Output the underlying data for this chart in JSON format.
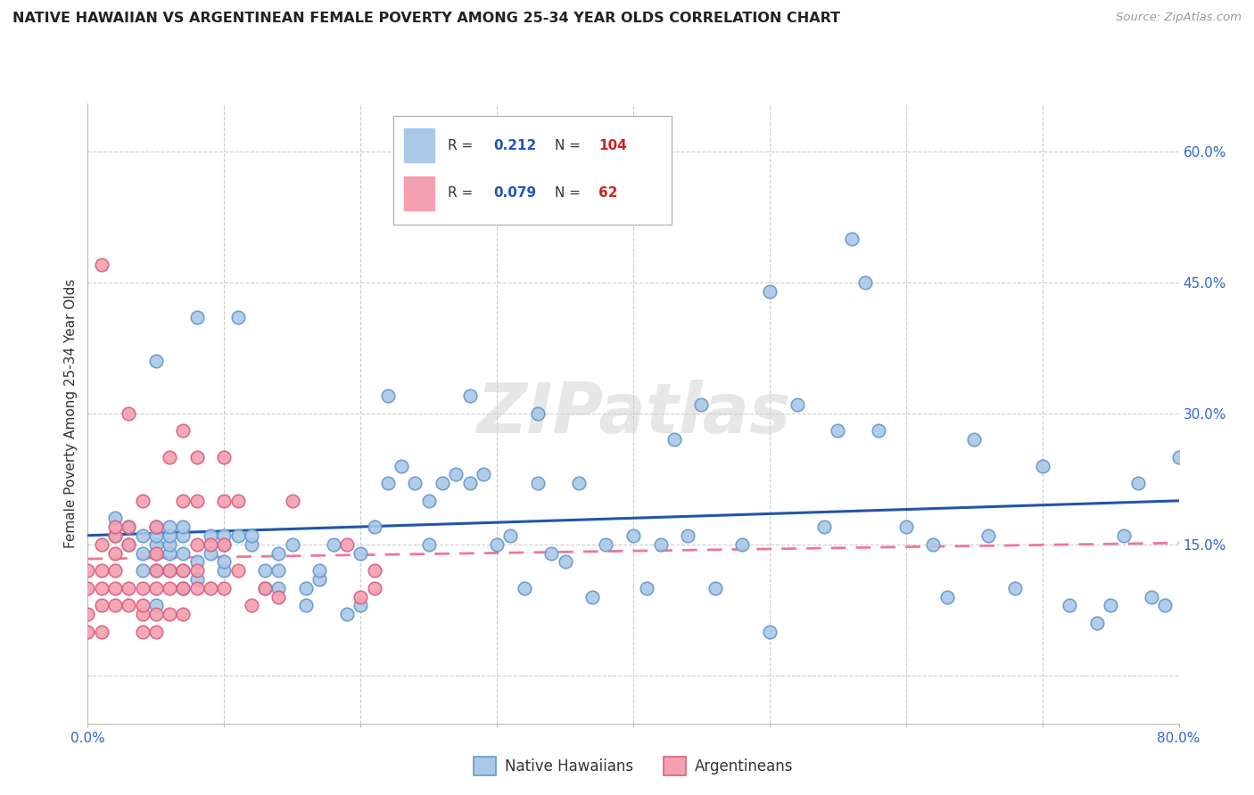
{
  "title": "NATIVE HAWAIIAN VS ARGENTINEAN FEMALE POVERTY AMONG 25-34 YEAR OLDS CORRELATION CHART",
  "source": "Source: ZipAtlas.com",
  "ylabel": "Female Poverty Among 25-34 Year Olds",
  "nh_color": "#aac8e8",
  "nh_edge": "#6699cc",
  "arg_color": "#f4a0b0",
  "arg_edge": "#d96080",
  "nh_line_color": "#2255aa",
  "arg_line_color": "#ee7799",
  "watermark": "ZIPatlas",
  "xmin": 0.0,
  "xmax": 0.8,
  "ymin": -0.055,
  "ymax": 0.655,
  "legend_R1": "0.212",
  "legend_N1": "104",
  "legend_R2": "0.079",
  "legend_N2": "62",
  "legend_label1": "Native Hawaiians",
  "legend_label2": "Argentineans",
  "native_hawaiian_x": [
    0.02,
    0.02,
    0.03,
    0.03,
    0.04,
    0.04,
    0.04,
    0.05,
    0.05,
    0.05,
    0.05,
    0.05,
    0.05,
    0.05,
    0.06,
    0.06,
    0.06,
    0.06,
    0.06,
    0.07,
    0.07,
    0.07,
    0.07,
    0.07,
    0.08,
    0.08,
    0.08,
    0.09,
    0.09,
    0.1,
    0.1,
    0.1,
    0.1,
    0.11,
    0.11,
    0.12,
    0.12,
    0.13,
    0.13,
    0.14,
    0.14,
    0.15,
    0.16,
    0.16,
    0.17,
    0.17,
    0.18,
    0.19,
    0.2,
    0.2,
    0.21,
    0.22,
    0.23,
    0.24,
    0.25,
    0.25,
    0.26,
    0.27,
    0.28,
    0.29,
    0.3,
    0.31,
    0.32,
    0.33,
    0.34,
    0.35,
    0.36,
    0.37,
    0.38,
    0.4,
    0.41,
    0.42,
    0.43,
    0.44,
    0.45,
    0.46,
    0.48,
    0.5,
    0.5,
    0.52,
    0.54,
    0.55,
    0.56,
    0.57,
    0.58,
    0.6,
    0.62,
    0.63,
    0.65,
    0.66,
    0.68,
    0.7,
    0.72,
    0.74,
    0.75,
    0.76,
    0.77,
    0.78,
    0.79,
    0.8,
    0.14,
    0.22,
    0.28,
    0.33
  ],
  "native_hawaiian_y": [
    0.16,
    0.18,
    0.15,
    0.17,
    0.12,
    0.14,
    0.16,
    0.08,
    0.12,
    0.14,
    0.15,
    0.16,
    0.36,
    0.17,
    0.12,
    0.14,
    0.15,
    0.16,
    0.17,
    0.1,
    0.12,
    0.14,
    0.16,
    0.17,
    0.11,
    0.13,
    0.41,
    0.14,
    0.16,
    0.12,
    0.13,
    0.15,
    0.16,
    0.16,
    0.41,
    0.15,
    0.16,
    0.1,
    0.12,
    0.12,
    0.14,
    0.15,
    0.08,
    0.1,
    0.11,
    0.12,
    0.15,
    0.07,
    0.08,
    0.14,
    0.17,
    0.22,
    0.24,
    0.22,
    0.15,
    0.2,
    0.22,
    0.23,
    0.22,
    0.23,
    0.15,
    0.16,
    0.1,
    0.22,
    0.14,
    0.13,
    0.22,
    0.09,
    0.15,
    0.16,
    0.1,
    0.15,
    0.27,
    0.16,
    0.31,
    0.1,
    0.15,
    0.05,
    0.44,
    0.31,
    0.17,
    0.28,
    0.5,
    0.45,
    0.28,
    0.17,
    0.15,
    0.09,
    0.27,
    0.16,
    0.1,
    0.24,
    0.08,
    0.06,
    0.08,
    0.16,
    0.22,
    0.09,
    0.08,
    0.25,
    0.1,
    0.32,
    0.32,
    0.3
  ],
  "argentinean_x": [
    0.0,
    0.0,
    0.0,
    0.0,
    0.01,
    0.01,
    0.01,
    0.01,
    0.01,
    0.01,
    0.02,
    0.02,
    0.02,
    0.02,
    0.02,
    0.02,
    0.03,
    0.03,
    0.03,
    0.03,
    0.03,
    0.04,
    0.04,
    0.04,
    0.04,
    0.04,
    0.05,
    0.05,
    0.05,
    0.05,
    0.05,
    0.05,
    0.06,
    0.06,
    0.06,
    0.06,
    0.07,
    0.07,
    0.07,
    0.07,
    0.07,
    0.08,
    0.08,
    0.08,
    0.08,
    0.08,
    0.09,
    0.09,
    0.1,
    0.1,
    0.1,
    0.1,
    0.11,
    0.11,
    0.12,
    0.13,
    0.14,
    0.15,
    0.19,
    0.2,
    0.21,
    0.21
  ],
  "argentinean_y": [
    0.05,
    0.07,
    0.1,
    0.12,
    0.05,
    0.08,
    0.1,
    0.12,
    0.15,
    0.47,
    0.08,
    0.1,
    0.12,
    0.14,
    0.16,
    0.17,
    0.08,
    0.1,
    0.15,
    0.17,
    0.3,
    0.05,
    0.07,
    0.08,
    0.1,
    0.2,
    0.05,
    0.07,
    0.1,
    0.12,
    0.14,
    0.17,
    0.07,
    0.1,
    0.12,
    0.25,
    0.07,
    0.1,
    0.12,
    0.2,
    0.28,
    0.1,
    0.12,
    0.15,
    0.2,
    0.25,
    0.1,
    0.15,
    0.1,
    0.15,
    0.2,
    0.25,
    0.12,
    0.2,
    0.08,
    0.1,
    0.09,
    0.2,
    0.15,
    0.09,
    0.1,
    0.12
  ],
  "ytick_vals": [
    0.0,
    0.15,
    0.3,
    0.45,
    0.6
  ],
  "ytick_labels": [
    "",
    "15.0%",
    "30.0%",
    "45.0%",
    "60.0%"
  ],
  "xtick_vals": [
    0.0,
    0.1,
    0.2,
    0.3,
    0.4,
    0.5,
    0.6,
    0.7,
    0.8
  ],
  "xtick_labels": [
    "0.0%",
    "",
    "",
    "",
    "",
    "",
    "",
    "",
    "80.0%"
  ]
}
